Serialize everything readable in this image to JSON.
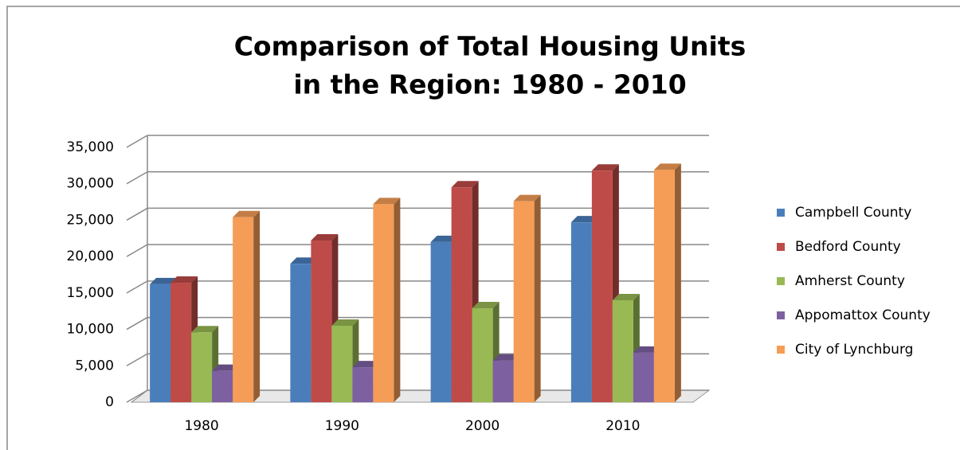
{
  "chart_data": {
    "type": "bar3d",
    "title": [
      "Comparison of Total Housing Units",
      "in the Region: 1980 - 2010"
    ],
    "categories": [
      "1980",
      "1990",
      "2000",
      "2010"
    ],
    "series": [
      {
        "name": "Campbell County",
        "color": "#4a7ebb",
        "values": [
          16200,
          19000,
          22000,
          24700
        ]
      },
      {
        "name": "Bedford County",
        "color": "#be4b48",
        "values": [
          16400,
          22200,
          29500,
          31800
        ]
      },
      {
        "name": "Amherst County",
        "color": "#98b954",
        "values": [
          9600,
          10500,
          12900,
          14000
        ]
      },
      {
        "name": "Appomattox County",
        "color": "#7d60a0",
        "values": [
          4300,
          4800,
          5700,
          6800
        ]
      },
      {
        "name": "City of Lynchburg",
        "color": "#f59d56",
        "values": [
          25400,
          27200,
          27600,
          31900
        ]
      }
    ],
    "ylim": [
      0,
      35000
    ],
    "yticks": [
      0,
      {
        "value": 5000,
        "label": "5,000"
      },
      {
        "value": 10000,
        "label": "10,000"
      },
      {
        "value": 15000,
        "label": "15,000"
      },
      {
        "value": 20000,
        "label": "20,000"
      },
      {
        "value": 25000,
        "label": "25,000"
      },
      {
        "value": 30000,
        "label": "30,000"
      },
      {
        "value": 35000,
        "label": "35,000"
      }
    ],
    "grid": true,
    "legend": "right"
  }
}
